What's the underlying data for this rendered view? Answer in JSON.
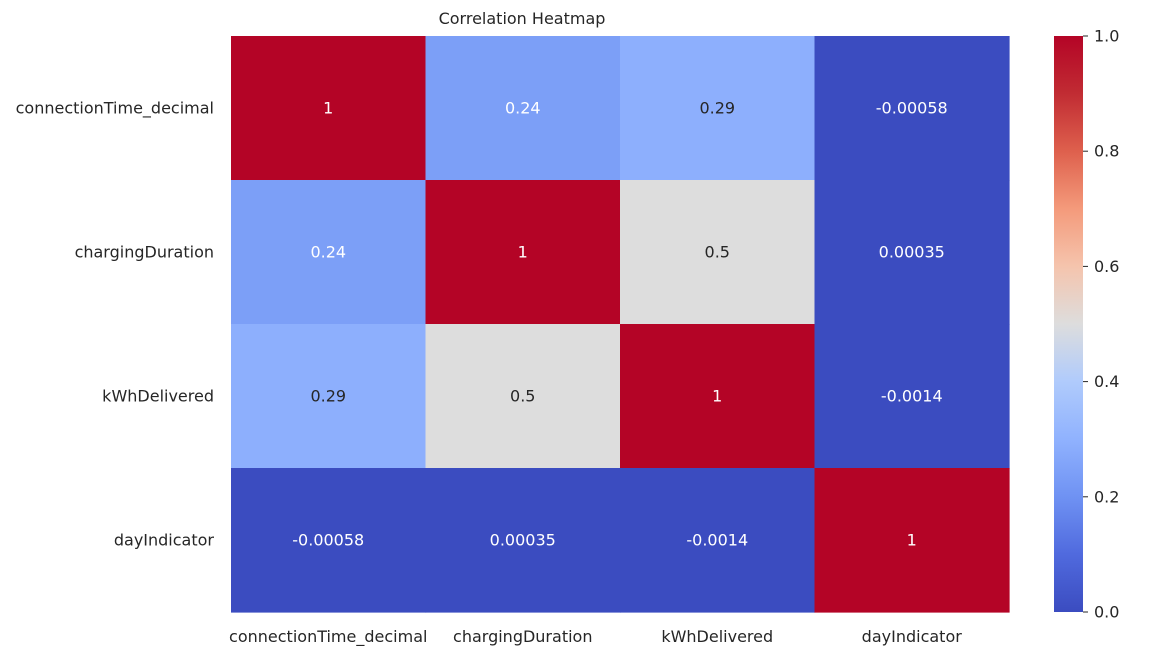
{
  "chart_data": {
    "type": "heatmap",
    "title": "Correlation Heatmap",
    "xlabel": "",
    "ylabel": "",
    "x_categories": [
      "connectionTime_decimal",
      "chargingDuration",
      "kWhDelivered",
      "dayIndicator"
    ],
    "y_categories": [
      "connectionTime_decimal",
      "chargingDuration",
      "kWhDelivered",
      "dayIndicator"
    ],
    "values": [
      [
        1,
        0.24,
        0.29,
        -0.00058
      ],
      [
        0.24,
        1,
        0.5,
        0.00035
      ],
      [
        0.29,
        0.5,
        1,
        -0.0014
      ],
      [
        -0.00058,
        0.00035,
        -0.0014,
        1
      ]
    ],
    "annotations": [
      [
        "1",
        "0.24",
        "0.29",
        "-0.00058"
      ],
      [
        "0.24",
        "1",
        "0.5",
        "0.00035"
      ],
      [
        "0.29",
        "0.5",
        "1",
        "-0.0014"
      ],
      [
        "-0.00058",
        "0.00035",
        "-0.0014",
        "1"
      ]
    ],
    "colormap": "coolwarm",
    "vmin": 0,
    "vmax": 1,
    "colorbar": {
      "ticks": [
        0,
        0.2,
        0.4,
        0.6,
        0.8,
        1
      ],
      "tick_labels": [
        "0.0",
        "0.2",
        "0.4",
        "0.6",
        "0.8",
        "1.0"
      ],
      "placement": "right"
    },
    "grid": false,
    "colors": {
      "low": "#3b4cc0",
      "high": "#b40426",
      "annot_dark_text": "#262626",
      "annot_light_text": "#ffffff",
      "label_text": "#262626"
    }
  }
}
